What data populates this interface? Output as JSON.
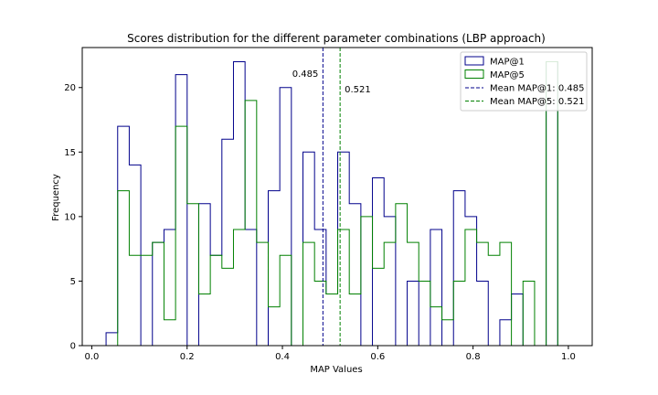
{
  "chart_data": {
    "type": "histogram",
    "title": "Scores distribution for the different parameter combinations (LBP approach)",
    "xlabel": "MAP Values",
    "ylabel": "Frequency",
    "xlim": [
      -0.02,
      1.05
    ],
    "ylim": [
      0,
      23.1
    ],
    "xticks": [
      0.0,
      0.2,
      0.4,
      0.6,
      0.8,
      1.0
    ],
    "xtick_labels": [
      "0.0",
      "0.2",
      "0.4",
      "0.6",
      "0.8",
      "1.0"
    ],
    "yticks": [
      0,
      5,
      10,
      15,
      20
    ],
    "ytick_labels": [
      "0",
      "5",
      "10",
      "15",
      "20"
    ],
    "bins": {
      "start": 0.03,
      "width": 0.0243,
      "count": 40
    },
    "series": [
      {
        "name": "MAP@1",
        "color": "#00008b",
        "counts": [
          1,
          17,
          14,
          0,
          8,
          9,
          21,
          0,
          11,
          7,
          16,
          22,
          9,
          0,
          12,
          20,
          0,
          15,
          9,
          4,
          15,
          11,
          0,
          13,
          10,
          0,
          5,
          0,
          9,
          0,
          12,
          10,
          5,
          0,
          2,
          4,
          0,
          0,
          22,
          0
        ]
      },
      {
        "name": "MAP@5",
        "color": "#008000",
        "counts": [
          0,
          12,
          7,
          7,
          8,
          2,
          17,
          11,
          4,
          7,
          6,
          9,
          19,
          8,
          3,
          7,
          0,
          8,
          5,
          4,
          9,
          4,
          10,
          6,
          8,
          11,
          8,
          5,
          3,
          2,
          5,
          9,
          8,
          7,
          8,
          0,
          5,
          0,
          22,
          0
        ]
      }
    ],
    "vlines": [
      {
        "name": "Mean MAP@1: 0.485",
        "x": 0.485,
        "color": "#00008b",
        "style": "dashed",
        "annotation": "0.485"
      },
      {
        "name": "Mean MAP@5: 0.521",
        "x": 0.521,
        "color": "#008000",
        "style": "dashed",
        "annotation": "0.521"
      }
    ],
    "legend": {
      "placement": "upper right",
      "entries": [
        {
          "label": "MAP@1",
          "kind": "patch",
          "color": "#00008b"
        },
        {
          "label": "MAP@5",
          "kind": "patch",
          "color": "#008000"
        },
        {
          "label": "Mean MAP@1: 0.485",
          "kind": "dashed",
          "color": "#00008b"
        },
        {
          "label": "Mean MAP@5: 0.521",
          "kind": "dashed",
          "color": "#008000"
        }
      ]
    },
    "grid": false
  }
}
